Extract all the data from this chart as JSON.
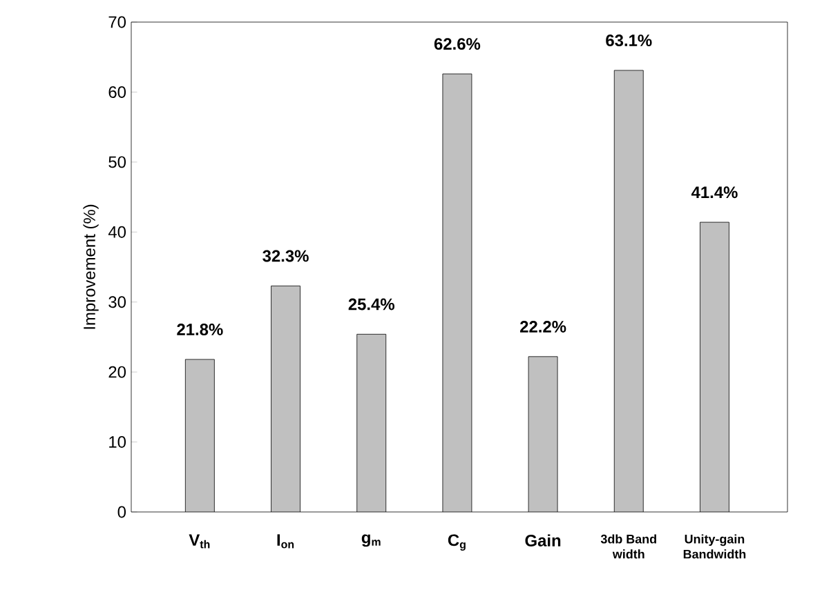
{
  "chart_data": {
    "type": "bar",
    "ylabel": "Improvement (%)",
    "categories": [
      "V$_{th}$",
      "I$_{on}$",
      "g$_{m}$",
      "C$_{g}$",
      "Gain",
      "3db Band width",
      "Unity-gain Bandwidth"
    ],
    "values": [
      21.8,
      32.3,
      25.4,
      62.6,
      22.2,
      63.1,
      41.4
    ],
    "value_labels": [
      "21.8%",
      "32.3%",
      "25.4%",
      "62.6%",
      "22.2%",
      "63.1%",
      "41.4%"
    ],
    "color": "#c0c0c0",
    "ylim": [
      0,
      70
    ],
    "yticks": [
      0,
      10,
      20,
      30,
      40,
      50,
      60,
      70
    ]
  }
}
